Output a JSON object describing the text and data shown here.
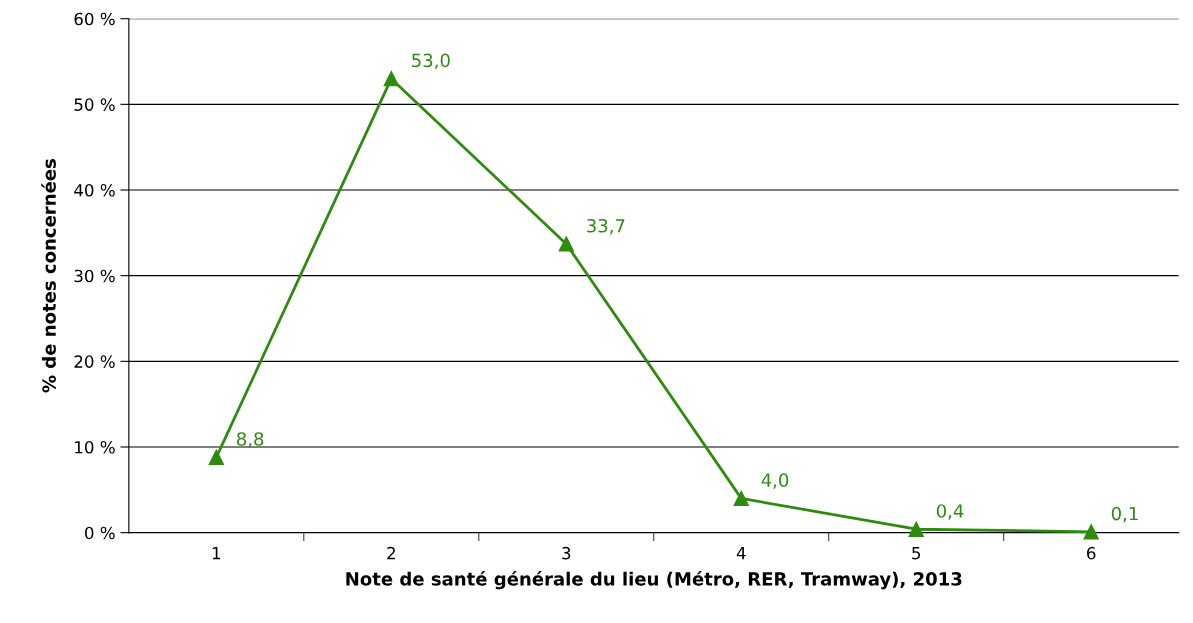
{
  "chart_data": {
    "type": "line",
    "xlabel": "Note de santé générale du lieu (Métro, RER, Tramway), 2013",
    "ylabel": "% de notes concernées",
    "categories": [
      "1",
      "2",
      "3",
      "4",
      "5",
      "6"
    ],
    "series": [
      {
        "color": "#2e8b0e",
        "values": [
          8.8,
          53.0,
          33.7,
          4.0,
          0.4,
          0.1
        ],
        "value_labels": [
          "8,8",
          "53,0",
          "33,7",
          "4,0",
          "0,4",
          "0,1"
        ]
      }
    ],
    "ylim": [
      0,
      60
    ],
    "yticks": [
      {
        "value": 0,
        "label": "0 %"
      },
      {
        "value": 10,
        "label": "10 %"
      },
      {
        "value": 20,
        "label": "20 %"
      },
      {
        "value": 30,
        "label": "30 %"
      },
      {
        "value": 40,
        "label": "40 %"
      },
      {
        "value": 50,
        "label": "50 %"
      },
      {
        "value": 60,
        "label": "60 %"
      }
    ],
    "grid": "y",
    "marker": "triangle",
    "line_style": "solid",
    "legend": false
  }
}
